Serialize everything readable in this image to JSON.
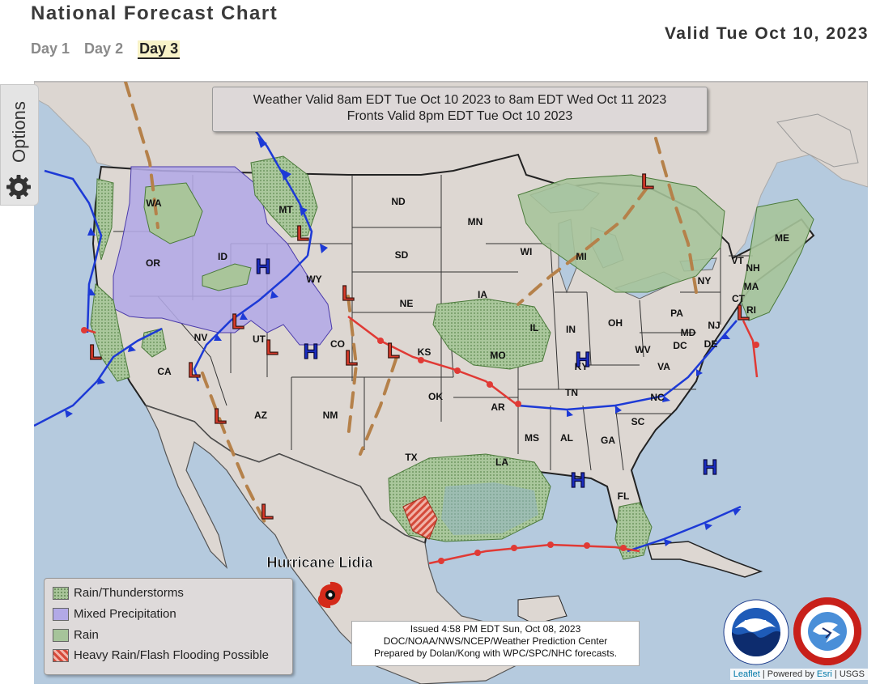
{
  "header": {
    "title": "National Forecast Chart",
    "valid": "Valid Tue Oct 10, 2023",
    "tabs": [
      {
        "label": "Day 1",
        "active": false
      },
      {
        "label": "Day 2",
        "active": false
      },
      {
        "label": "Day 3",
        "active": true
      }
    ]
  },
  "options": {
    "label": "Options",
    "icon": "gear-icon"
  },
  "map": {
    "weather_valid_line1": "Weather Valid 8am EDT Tue Oct 10 2023 to 8am EDT Wed Oct 11 2023",
    "weather_valid_line2": "Fronts Valid 8pm EDT Tue Oct 10 2023",
    "hurricane_label": "Hurricane Lidia",
    "states": [
      "WA",
      "OR",
      "CA",
      "ID",
      "NV",
      "MT",
      "WY",
      "UT",
      "AZ",
      "CO",
      "NM",
      "ND",
      "SD",
      "NE",
      "KS",
      "OK",
      "TX",
      "MN",
      "IA",
      "MO",
      "AR",
      "LA",
      "WI",
      "IL",
      "MI",
      "IN",
      "OH",
      "KY",
      "TN",
      "MS",
      "AL",
      "GA",
      "FL",
      "SC",
      "NC",
      "VA",
      "WV",
      "PA",
      "NY",
      "ME",
      "VT",
      "NH",
      "MA",
      "CT",
      "RI",
      "NJ",
      "MD",
      "DE",
      "DC"
    ],
    "high_symbol": "H",
    "low_symbol": "L",
    "colors": {
      "water": "#b5cade",
      "land": "#ddd7d2",
      "low": "#d93a2a",
      "high": "#1a2cbf",
      "warm_front": "#e03a35",
      "cold_front": "#1d3ad6",
      "trough": "#b5814a"
    }
  },
  "legend": {
    "items": [
      {
        "label": "Rain/Thunderstorms",
        "swatch": "rain-thunder"
      },
      {
        "label": "Mixed Precipitation",
        "swatch": "mixed"
      },
      {
        "label": "Rain",
        "swatch": "rain"
      },
      {
        "label": "Heavy Rain/Flash Flooding Possible",
        "swatch": "heavy-rain"
      }
    ]
  },
  "issued": {
    "line1": "Issued  4:58 PM EDT Sun, Oct 08, 2023",
    "line2": "DOC/NOAA/NWS/NCEP/Weather Prediction Center",
    "line3": "Prepared by Dolan/Kong with WPC/SPC/NHC forecasts."
  },
  "attribution": {
    "leaflet": "Leaflet",
    "sep1": " | Powered by ",
    "esri": "Esri",
    "sep2": " | USGS"
  },
  "logos": {
    "noaa": "NOAA",
    "nws": "NATIONAL WEATHER SERVICE"
  }
}
